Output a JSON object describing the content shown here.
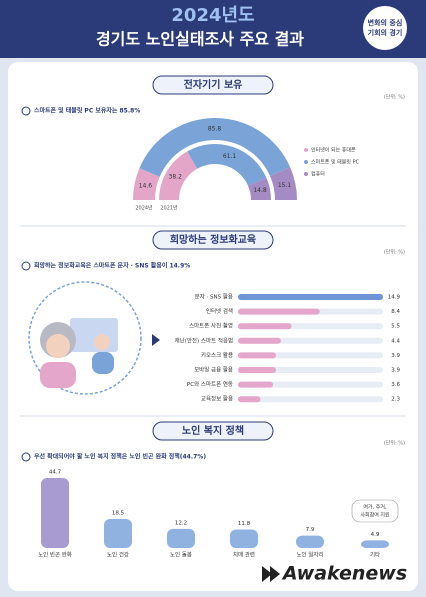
{
  "header": {
    "year": "2024년도",
    "title": "경기도 노인실태조사 주요 결과",
    "badge": [
      "변화의 중심",
      "기회의 경기"
    ]
  },
  "watermark": "Awakenews",
  "chart_data": [
    {
      "type": "donut",
      "title": "전자기기 보유",
      "unit": "(단위: %)",
      "note": "스마트폰 및 태블릿 PC 보유자는 85.8%",
      "categories": [
        "인터넷이 되는 휴대폰",
        "스마트폰 및 태블릿 PC",
        "컴퓨터"
      ],
      "colors": [
        "#e3a6c9",
        "#7aa3d8",
        "#a58bc4"
      ],
      "series": [
        {
          "name": "2024년",
          "values": [
            14.6,
            85.8,
            15.1
          ]
        },
        {
          "name": "2021년",
          "values": [
            38.2,
            61.1,
            14.8
          ]
        }
      ]
    },
    {
      "type": "hbar",
      "title": "희망하는 정보화교육",
      "unit": "(단위: %)",
      "note": "희망하는 정보화교육은 스마트폰 문자 · SNS 활용이 14.9%",
      "categories": [
        "문자 · SNS 활용",
        "인터넷 검색",
        "스마트폰 사진 촬영",
        "재난(안전) 스마트 적응법",
        "키오스크 활용",
        "모바일 금융 활용",
        "PC와 스마트폰 연동",
        "교육정보 활용"
      ],
      "values": [
        14.9,
        8.4,
        5.5,
        4.4,
        3.9,
        3.9,
        3.6,
        2.3
      ],
      "colors": [
        "#6f95d6",
        "#e4a7cb"
      ]
    },
    {
      "type": "bar",
      "title": "노인 복지 정책",
      "unit": "(단위: %)",
      "note": "우선 확대되어야 할 노인 복지 정책은 노인 빈곤 완화 정책(44.7%)",
      "categories": [
        "노인 빈곤 완화",
        "노인 건강",
        "노인 돌봄",
        "치매 관련",
        "노인 일자리",
        "기타"
      ],
      "values": [
        44.7,
        18.5,
        12.2,
        11.8,
        7.9,
        4.9
      ],
      "colors": [
        "#a89bd0",
        "#8fb2e0"
      ],
      "annotation": [
        "여가, 주거,",
        "사회참여 지원"
      ]
    }
  ]
}
